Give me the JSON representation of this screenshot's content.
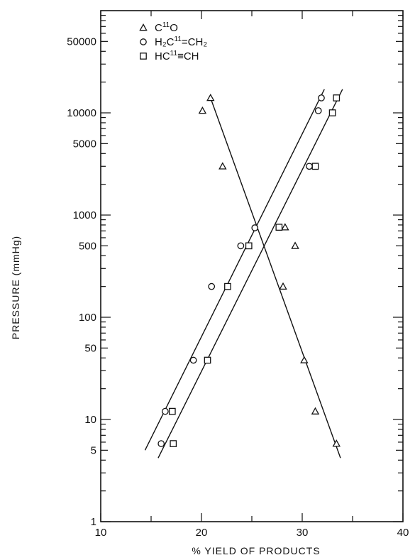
{
  "chart_data": {
    "type": "scatter",
    "xlabel": "% YIELD OF PRODUCTS",
    "ylabel": "PRESSURE (mmHg)",
    "xlim": [
      10,
      40
    ],
    "ylim": [
      1,
      100000
    ],
    "yscale": "log",
    "grid": false,
    "legend_position": "top-left",
    "x_ticks": [
      10,
      20,
      30,
      40
    ],
    "y_ticks": [
      1,
      5,
      10,
      50,
      100,
      500,
      1000,
      5000,
      10000,
      50000
    ],
    "x_tick_labels": [
      "10",
      "20",
      "30",
      "40"
    ],
    "y_tick_labels": [
      "1",
      "5",
      "10",
      "50",
      "100",
      "500",
      "1000",
      "5000",
      "10000",
      "50000"
    ],
    "series": [
      {
        "name": "C¹¹O",
        "legend_label": "C",
        "legend_sup": "11",
        "legend_tail": "O",
        "marker": "triangle",
        "x": [
          20.9,
          20.1,
          22.1,
          28.3,
          29.3,
          28.1,
          30.2,
          31.3,
          33.4
        ],
        "y": [
          14000,
          10500,
          3000,
          760,
          500,
          200,
          38,
          12,
          5.8
        ],
        "fit": {
          "x": [
            20.9,
            33.8
          ],
          "y": [
            14000,
            4.2
          ]
        }
      },
      {
        "name": "H₂C¹¹=CH₂",
        "legend_label": "H₂C",
        "legend_sup": "11",
        "legend_tail": "=CH₂",
        "marker": "circle",
        "x": [
          16.0,
          16.4,
          19.2,
          21.0,
          23.9,
          25.3,
          30.7,
          31.6,
          31.9
        ],
        "y": [
          5.8,
          12,
          38,
          200,
          500,
          750,
          3000,
          10500,
          14000
        ],
        "fit": {
          "x": [
            14.4,
            32.2
          ],
          "y": [
            5,
            17000
          ]
        }
      },
      {
        "name": "HC¹¹≡CH",
        "legend_label": "HC",
        "legend_sup": "11",
        "legend_tail": "≡CH",
        "marker": "square",
        "x": [
          17.2,
          17.1,
          20.6,
          22.6,
          24.7,
          27.7,
          31.3,
          33.0,
          33.4
        ],
        "y": [
          5.8,
          12,
          38,
          200,
          500,
          760,
          3000,
          10000,
          14000
        ],
        "fit": {
          "x": [
            15.7,
            34.0
          ],
          "y": [
            4.2,
            17000
          ]
        }
      }
    ]
  }
}
